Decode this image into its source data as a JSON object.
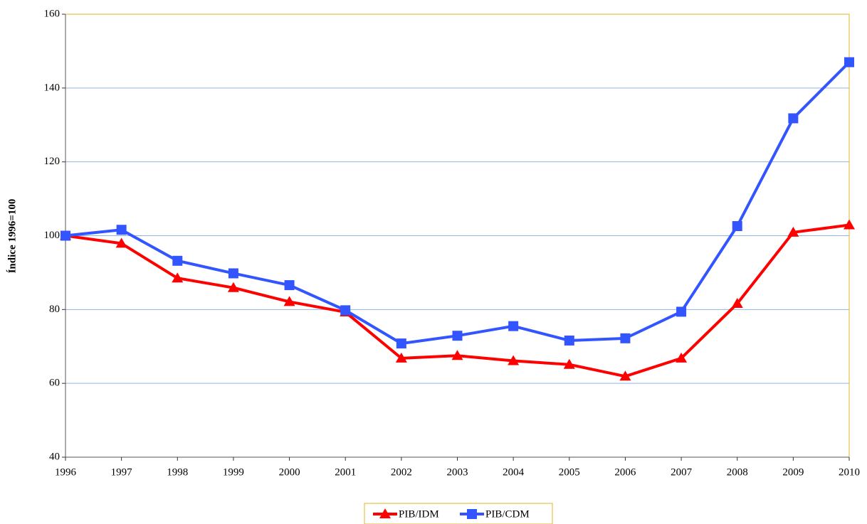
{
  "chart_data": {
    "type": "line",
    "y_label": "Índice 1996=100",
    "x": [
      1996,
      1997,
      1998,
      1999,
      2000,
      2001,
      2002,
      2003,
      2004,
      2005,
      2006,
      2007,
      2008,
      2009,
      2010
    ],
    "xlim": [
      1996,
      2010
    ],
    "xticks": [
      1996,
      1997,
      1998,
      1999,
      2000,
      2001,
      2002,
      2003,
      2004,
      2005,
      2006,
      2007,
      2008,
      2009,
      2010
    ],
    "ylim": [
      40,
      160
    ],
    "yticks": [
      40,
      60,
      80,
      100,
      120,
      140,
      160
    ],
    "grid": true,
    "legend": "bottom",
    "series": [
      {
        "name": "PIB/IDM",
        "color": "#ff0000",
        "marker": "triangle",
        "values": [
          100,
          97.9,
          88.5,
          85.9,
          82.1,
          79.3,
          66.8,
          67.5,
          66.1,
          65.1,
          61.9,
          66.8,
          81.6,
          100.9,
          102.9
        ]
      },
      {
        "name": "PIB/CDM",
        "color": "#3355ff",
        "marker": "square",
        "values": [
          100,
          101.6,
          93.2,
          89.8,
          86.6,
          79.8,
          70.8,
          72.9,
          75.5,
          71.6,
          72.2,
          79.4,
          102.6,
          131.8,
          147.0
        ]
      }
    ]
  }
}
